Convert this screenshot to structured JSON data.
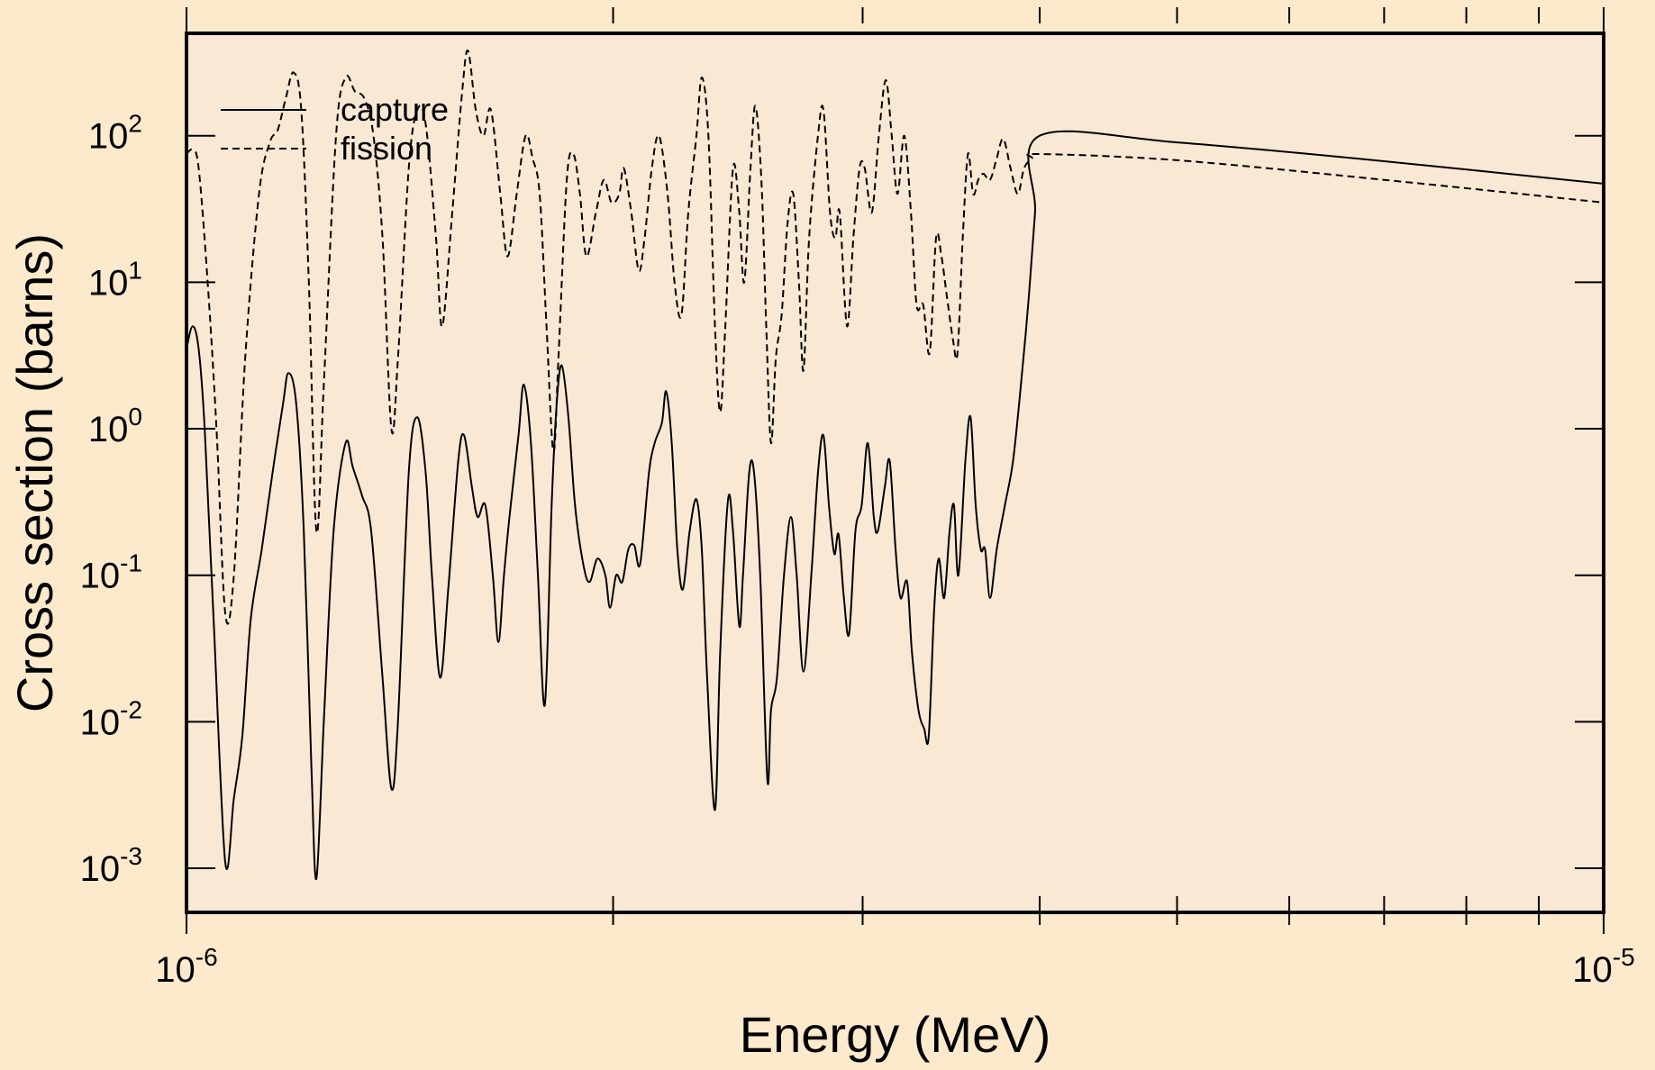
{
  "colors": {
    "page_background": "#fdeacc",
    "plot_background": "#f9e8d4",
    "line": "#000000"
  },
  "chart_data": {
    "type": "line",
    "title": "",
    "xlabel": "Energy (MeV)",
    "ylabel": "Cross section (barns)",
    "x_scale": "log",
    "y_scale": "log",
    "xlim": [
      1e-06,
      1e-05
    ],
    "ylim": [
      0.0005,
      500
    ],
    "x_ticks": [
      {
        "value": 1e-06,
        "base": "10",
        "exp": "-6"
      },
      {
        "value": 1e-05,
        "base": "10",
        "exp": "-5"
      }
    ],
    "y_ticks": [
      {
        "value": 0.001,
        "base": "10",
        "exp": "-3"
      },
      {
        "value": 0.01,
        "base": "10",
        "exp": "-2"
      },
      {
        "value": 0.1,
        "base": "10",
        "exp": "-1"
      },
      {
        "value": 1,
        "base": "10",
        "exp": "0"
      },
      {
        "value": 10,
        "base": "10",
        "exp": "1"
      },
      {
        "value": 100,
        "base": "10",
        "exp": "2"
      }
    ],
    "grid": false,
    "legend_position": "top-left",
    "series": [
      {
        "name": "capture",
        "style": "solid",
        "points": [
          [
            1e-06,
            3.5
          ],
          [
            1.01e-06,
            5.0
          ],
          [
            1.02e-06,
            3.5
          ],
          [
            1.03e-06,
            1.0
          ],
          [
            1.045e-06,
            0.05
          ],
          [
            1.065e-06,
            0.0011
          ],
          [
            1.08e-06,
            0.003
          ],
          [
            1.095e-06,
            0.008
          ],
          [
            1.11e-06,
            0.05
          ],
          [
            1.13e-06,
            0.15
          ],
          [
            1.15e-06,
            0.5
          ],
          [
            1.17e-06,
            1.5
          ],
          [
            1.18e-06,
            2.4
          ],
          [
            1.195e-06,
            1.5
          ],
          [
            1.21e-06,
            0.2
          ],
          [
            1.225e-06,
            0.005
          ],
          [
            1.235e-06,
            0.00085
          ],
          [
            1.25e-06,
            0.01
          ],
          [
            1.27e-06,
            0.2
          ],
          [
            1.295e-06,
            0.8
          ],
          [
            1.31e-06,
            0.55
          ],
          [
            1.33e-06,
            0.35
          ],
          [
            1.35e-06,
            0.2
          ],
          [
            1.375e-06,
            0.02
          ],
          [
            1.395e-06,
            0.0035
          ],
          [
            1.41e-06,
            0.01
          ],
          [
            1.435e-06,
            0.5
          ],
          [
            1.455e-06,
            1.2
          ],
          [
            1.475e-06,
            0.5
          ],
          [
            1.49e-06,
            0.1
          ],
          [
            1.51e-06,
            0.02
          ],
          [
            1.53e-06,
            0.08
          ],
          [
            1.555e-06,
            0.6
          ],
          [
            1.57e-06,
            0.9
          ],
          [
            1.59e-06,
            0.4
          ],
          [
            1.605e-06,
            0.25
          ],
          [
            1.625e-06,
            0.3
          ],
          [
            1.645e-06,
            0.1
          ],
          [
            1.66e-06,
            0.035
          ],
          [
            1.675e-06,
            0.1
          ],
          [
            1.69e-06,
            0.25
          ],
          [
            1.715e-06,
            0.9
          ],
          [
            1.73e-06,
            2.0
          ],
          [
            1.75e-06,
            0.8
          ],
          [
            1.77e-06,
            0.1
          ],
          [
            1.79e-06,
            0.013
          ],
          [
            1.81e-06,
            0.3
          ],
          [
            1.825e-06,
            1.5
          ],
          [
            1.84e-06,
            2.7
          ],
          [
            1.86e-06,
            1.2
          ],
          [
            1.88e-06,
            0.3
          ],
          [
            1.905e-06,
            0.12
          ],
          [
            1.925e-06,
            0.09
          ],
          [
            1.95e-06,
            0.13
          ],
          [
            1.975e-06,
            0.1
          ],
          [
            1.99e-06,
            0.06
          ],
          [
            2.01e-06,
            0.1
          ],
          [
            2.03e-06,
            0.09
          ],
          [
            2.05e-06,
            0.15
          ],
          [
            2.07e-06,
            0.16
          ],
          [
            2.09e-06,
            0.12
          ],
          [
            2.12e-06,
            0.5
          ],
          [
            2.14e-06,
            0.8
          ],
          [
            2.165e-06,
            1.1
          ],
          [
            2.18e-06,
            1.8
          ],
          [
            2.2e-06,
            0.8
          ],
          [
            2.22e-06,
            0.15
          ],
          [
            2.24e-06,
            0.08
          ],
          [
            2.265e-06,
            0.2
          ],
          [
            2.29e-06,
            0.33
          ],
          [
            2.31e-06,
            0.15
          ],
          [
            2.33e-06,
            0.02
          ],
          [
            2.36e-06,
            0.0025
          ],
          [
            2.38e-06,
            0.03
          ],
          [
            2.41e-06,
            0.32
          ],
          [
            2.43e-06,
            0.2
          ],
          [
            2.455e-06,
            0.045
          ],
          [
            2.47e-06,
            0.1
          ],
          [
            2.495e-06,
            0.5
          ],
          [
            2.515e-06,
            0.5
          ],
          [
            2.54e-06,
            0.1
          ],
          [
            2.57e-06,
            0.004
          ],
          [
            2.585e-06,
            0.012
          ],
          [
            2.61e-06,
            0.02
          ],
          [
            2.64e-06,
            0.1
          ],
          [
            2.67e-06,
            0.25
          ],
          [
            2.695e-06,
            0.1
          ],
          [
            2.725e-06,
            0.022
          ],
          [
            2.76e-06,
            0.1
          ],
          [
            2.79e-06,
            0.5
          ],
          [
            2.815e-06,
            0.9
          ],
          [
            2.84e-06,
            0.3
          ],
          [
            2.865e-06,
            0.14
          ],
          [
            2.885e-06,
            0.19
          ],
          [
            2.91e-06,
            0.07
          ],
          [
            2.935e-06,
            0.04
          ],
          [
            2.965e-06,
            0.2
          ],
          [
            2.995e-06,
            0.3
          ],
          [
            3.025e-06,
            0.8
          ],
          [
            3.055e-06,
            0.25
          ],
          [
            3.075e-06,
            0.2
          ],
          [
            3.11e-06,
            0.4
          ],
          [
            3.135e-06,
            0.6
          ],
          [
            3.165e-06,
            0.15
          ],
          [
            3.19e-06,
            0.07
          ],
          [
            3.225e-06,
            0.09
          ],
          [
            3.25e-06,
            0.03
          ],
          [
            3.285e-06,
            0.012
          ],
          [
            3.315e-06,
            0.009
          ],
          [
            3.34e-06,
            0.008
          ],
          [
            3.37e-06,
            0.06
          ],
          [
            3.395e-06,
            0.13
          ],
          [
            3.425e-06,
            0.07
          ],
          [
            3.455e-06,
            0.2
          ],
          [
            3.48e-06,
            0.3
          ],
          [
            3.505e-06,
            0.1
          ],
          [
            3.545e-06,
            0.6
          ],
          [
            3.575e-06,
            1.2
          ],
          [
            3.605e-06,
            0.3
          ],
          [
            3.635e-06,
            0.15
          ],
          [
            3.66e-06,
            0.15
          ],
          [
            3.69e-06,
            0.07
          ],
          [
            3.73e-06,
            0.15
          ],
          [
            3.78e-06,
            0.3
          ],
          [
            3.83e-06,
            0.6
          ],
          [
            3.88e-06,
            2.0
          ],
          [
            3.93e-06,
            8.0
          ],
          [
            3.97e-06,
            30
          ],
          [
            4e-06,
            100
          ],
          [
            5e-06,
            90
          ],
          [
            7e-06,
            67
          ],
          [
            1e-05,
            47
          ]
        ]
      },
      {
        "name": "fission",
        "style": "dashed",
        "points": [
          [
            1e-06,
            75
          ],
          [
            1.01e-06,
            80
          ],
          [
            1.02e-06,
            60
          ],
          [
            1.035e-06,
            10
          ],
          [
            1.05e-06,
            1.0
          ],
          [
            1.065e-06,
            0.055
          ],
          [
            1.08e-06,
            0.1
          ],
          [
            1.1e-06,
            3.0
          ],
          [
            1.125e-06,
            40
          ],
          [
            1.145e-06,
            90
          ],
          [
            1.16e-06,
            110
          ],
          [
            1.175e-06,
            180
          ],
          [
            1.19e-06,
            270
          ],
          [
            1.205e-06,
            150
          ],
          [
            1.22e-06,
            10
          ],
          [
            1.235e-06,
            0.2
          ],
          [
            1.25e-06,
            2.0
          ],
          [
            1.275e-06,
            100
          ],
          [
            1.295e-06,
            250
          ],
          [
            1.315e-06,
            200
          ],
          [
            1.335e-06,
            180
          ],
          [
            1.355e-06,
            100
          ],
          [
            1.375e-06,
            20
          ],
          [
            1.395e-06,
            1.0
          ],
          [
            1.41e-06,
            3.0
          ],
          [
            1.435e-06,
            60
          ],
          [
            1.455e-06,
            150
          ],
          [
            1.475e-06,
            120
          ],
          [
            1.5e-06,
            20
          ],
          [
            1.515e-06,
            5.0
          ],
          [
            1.54e-06,
            30
          ],
          [
            1.565e-06,
            200
          ],
          [
            1.58e-06,
            380
          ],
          [
            1.6e-06,
            150
          ],
          [
            1.62e-06,
            100
          ],
          [
            1.64e-06,
            150
          ],
          [
            1.665e-06,
            40
          ],
          [
            1.685e-06,
            15
          ],
          [
            1.71e-06,
            40
          ],
          [
            1.735e-06,
            100
          ],
          [
            1.755e-06,
            70
          ],
          [
            1.775e-06,
            40
          ],
          [
            1.795e-06,
            5.0
          ],
          [
            1.815e-06,
            0.7
          ],
          [
            1.83e-06,
            3.0
          ],
          [
            1.855e-06,
            50
          ],
          [
            1.875e-06,
            75
          ],
          [
            1.895e-06,
            40
          ],
          [
            1.915e-06,
            15
          ],
          [
            1.945e-06,
            30
          ],
          [
            1.97e-06,
            50
          ],
          [
            1.995e-06,
            35
          ],
          [
            2.02e-06,
            40
          ],
          [
            2.035e-06,
            60
          ],
          [
            2.06e-06,
            30
          ],
          [
            2.085e-06,
            12
          ],
          [
            2.105e-06,
            20
          ],
          [
            2.13e-06,
            60
          ],
          [
            2.155e-06,
            100
          ],
          [
            2.185e-06,
            40
          ],
          [
            2.21e-06,
            10
          ],
          [
            2.235e-06,
            6.0
          ],
          [
            2.26e-06,
            30
          ],
          [
            2.29e-06,
            100
          ],
          [
            2.31e-06,
            250
          ],
          [
            2.335e-06,
            100
          ],
          [
            2.36e-06,
            5.0
          ],
          [
            2.38e-06,
            1.3
          ],
          [
            2.4e-06,
            5.0
          ],
          [
            2.43e-06,
            60
          ],
          [
            2.455e-06,
            30
          ],
          [
            2.475e-06,
            10
          ],
          [
            2.5e-06,
            60
          ],
          [
            2.52e-06,
            160
          ],
          [
            2.545e-06,
            50
          ],
          [
            2.565e-06,
            5.0
          ],
          [
            2.585e-06,
            0.8
          ],
          [
            2.605e-06,
            3.0
          ],
          [
            2.63e-06,
            6.0
          ],
          [
            2.655e-06,
            25
          ],
          [
            2.68e-06,
            40
          ],
          [
            2.705e-06,
            10
          ],
          [
            2.725e-06,
            2.5
          ],
          [
            2.75e-06,
            20
          ],
          [
            2.79e-06,
            100
          ],
          [
            2.815e-06,
            150
          ],
          [
            2.845e-06,
            30
          ],
          [
            2.87e-06,
            20
          ],
          [
            2.89e-06,
            30
          ],
          [
            2.925e-06,
            5.0
          ],
          [
            2.955e-06,
            20
          ],
          [
            2.985e-06,
            60
          ],
          [
            3.01e-06,
            60
          ],
          [
            3.045e-06,
            30
          ],
          [
            3.08e-06,
            100
          ],
          [
            3.115e-06,
            240
          ],
          [
            3.145e-06,
            100
          ],
          [
            3.175e-06,
            40
          ],
          [
            3.21e-06,
            100
          ],
          [
            3.245e-06,
            30
          ],
          [
            3.275e-06,
            7.0
          ],
          [
            3.31e-06,
            7.0
          ],
          [
            3.345e-06,
            3.3
          ],
          [
            3.38e-06,
            20
          ],
          [
            3.41e-06,
            15
          ],
          [
            3.44e-06,
            8.0
          ],
          [
            3.475e-06,
            4.0
          ],
          [
            3.5e-06,
            3.3
          ],
          [
            3.53e-06,
            20
          ],
          [
            3.56e-06,
            75
          ],
          [
            3.59e-06,
            40
          ],
          [
            3.62e-06,
            50
          ],
          [
            3.65e-06,
            55
          ],
          [
            3.69e-06,
            50
          ],
          [
            3.73e-06,
            70
          ],
          [
            3.77e-06,
            95
          ],
          [
            3.815e-06,
            60
          ],
          [
            3.86e-06,
            40
          ],
          [
            3.9e-06,
            60
          ],
          [
            3.95e-06,
            70
          ],
          [
            4e-06,
            75
          ],
          [
            5e-06,
            68
          ],
          [
            7e-06,
            50
          ],
          [
            1e-05,
            35
          ]
        ]
      }
    ]
  }
}
